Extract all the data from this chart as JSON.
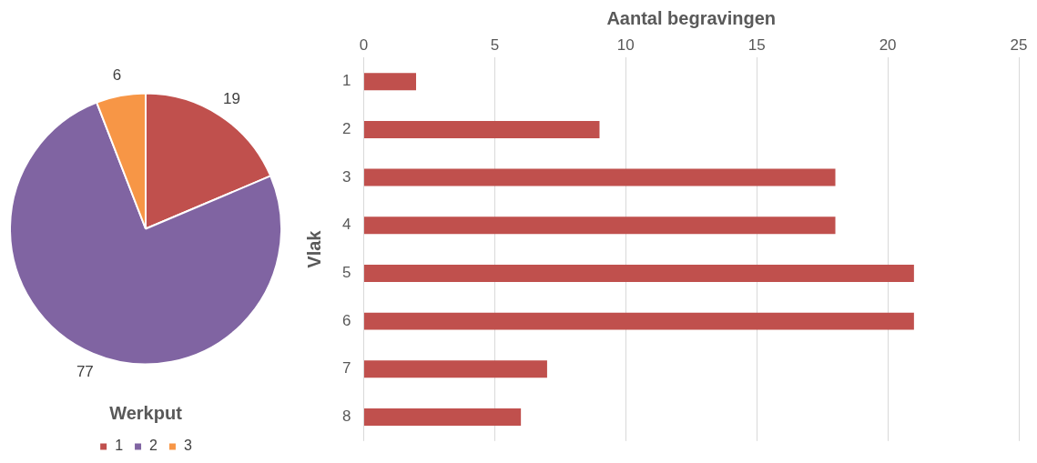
{
  "chart_data": [
    {
      "type": "pie",
      "categories": [
        "1",
        "2",
        "3"
      ],
      "values": [
        19,
        77,
        6
      ],
      "colors": [
        "#c0504d",
        "#8064a2",
        "#f79646"
      ],
      "legend": "bottom",
      "legend_title": "Werkput",
      "data_labels": true
    },
    {
      "type": "bar",
      "orientation": "horizontal",
      "categories": [
        "1",
        "2",
        "3",
        "4",
        "5",
        "6",
        "7",
        "8"
      ],
      "values": [
        2,
        9,
        18,
        18,
        21,
        21,
        7,
        6
      ],
      "color": "#c0504d",
      "xlim": [
        0,
        25
      ],
      "xticks": [
        0,
        5,
        10,
        15,
        20,
        25
      ],
      "xlabel": "Aantal begravingen",
      "ylabel": "Vlak",
      "grid": "x"
    }
  ]
}
